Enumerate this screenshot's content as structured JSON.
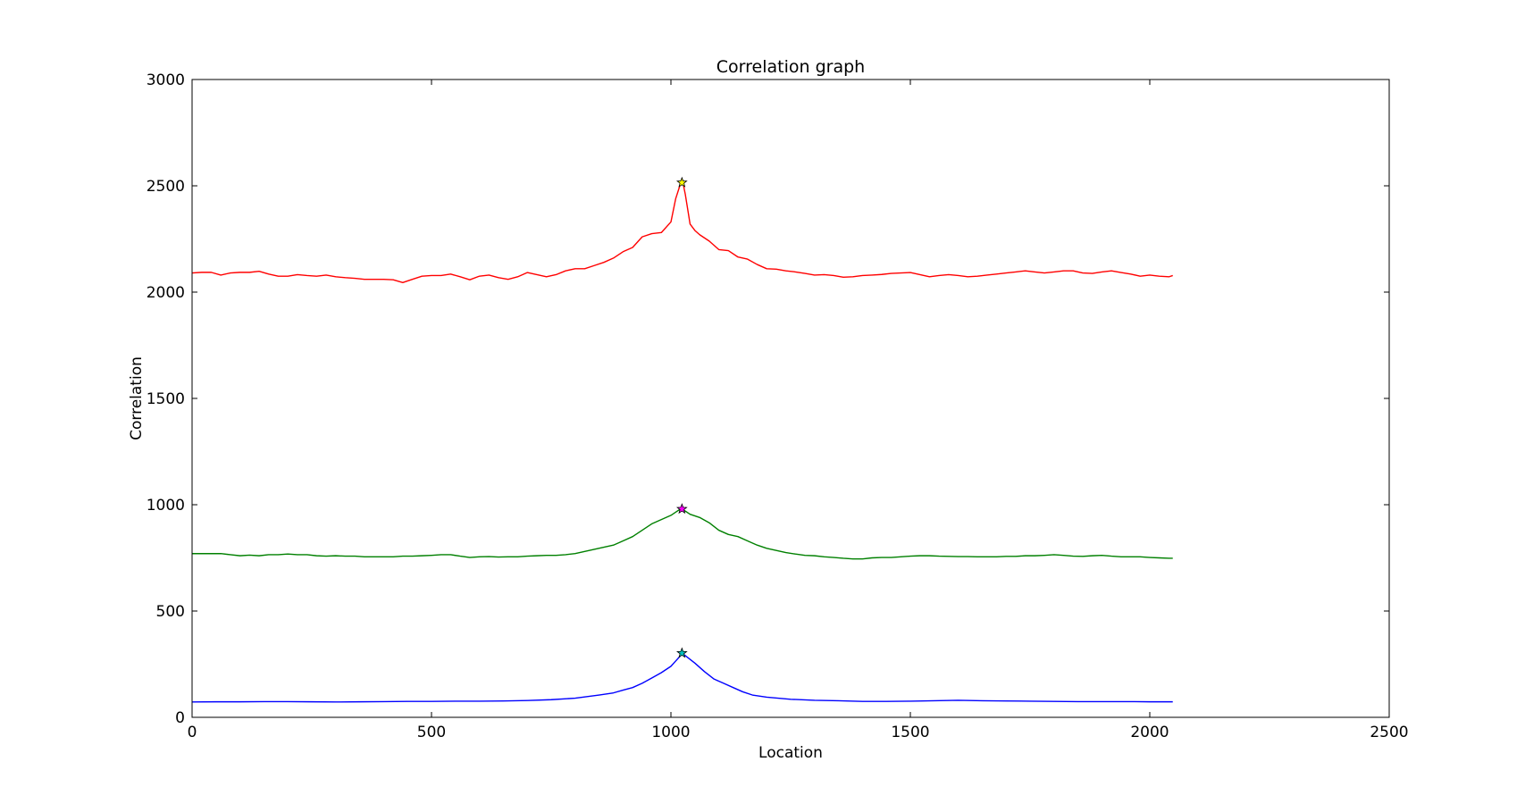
{
  "chart_data": {
    "type": "line",
    "title": "Correlation graph",
    "xlabel": "Location",
    "ylabel": "Correlation",
    "xlim": [
      0,
      2500
    ],
    "ylim": [
      0,
      3000
    ],
    "xticks": [
      "0",
      "500",
      "1000",
      "1500",
      "2000",
      "2500"
    ],
    "yticks": [
      "0",
      "500",
      "1000",
      "1500",
      "2000",
      "2500",
      "3000"
    ],
    "grid": false,
    "legend": "none",
    "series": [
      {
        "color": "#ff0000",
        "x": [
          0,
          20,
          40,
          60,
          80,
          100,
          120,
          140,
          160,
          180,
          200,
          220,
          240,
          260,
          280,
          300,
          320,
          340,
          360,
          380,
          400,
          420,
          440,
          460,
          480,
          500,
          520,
          540,
          560,
          580,
          600,
          620,
          640,
          660,
          680,
          700,
          720,
          740,
          760,
          780,
          800,
          820,
          840,
          860,
          880,
          900,
          920,
          940,
          960,
          980,
          1000,
          1010,
          1020,
          1025,
          1030,
          1040,
          1050,
          1060,
          1080,
          1100,
          1120,
          1140,
          1160,
          1180,
          1200,
          1220,
          1240,
          1260,
          1280,
          1300,
          1320,
          1340,
          1360,
          1380,
          1400,
          1420,
          1440,
          1460,
          1480,
          1500,
          1520,
          1540,
          1560,
          1580,
          1600,
          1620,
          1640,
          1660,
          1680,
          1700,
          1720,
          1740,
          1760,
          1780,
          1800,
          1820,
          1840,
          1860,
          1880,
          1900,
          1920,
          1940,
          1960,
          1980,
          2000,
          2020,
          2040,
          2048
        ],
        "y": [
          2090,
          2093,
          2093,
          2080,
          2090,
          2093,
          2093,
          2098,
          2085,
          2075,
          2075,
          2082,
          2078,
          2075,
          2080,
          2072,
          2068,
          2065,
          2060,
          2060,
          2060,
          2058,
          2045,
          2060,
          2075,
          2078,
          2078,
          2085,
          2072,
          2058,
          2075,
          2080,
          2068,
          2060,
          2072,
          2092,
          2082,
          2072,
          2082,
          2100,
          2110,
          2110,
          2125,
          2140,
          2160,
          2190,
          2210,
          2260,
          2275,
          2280,
          2330,
          2440,
          2510,
          2515,
          2460,
          2320,
          2290,
          2270,
          2240,
          2200,
          2195,
          2165,
          2155,
          2130,
          2110,
          2108,
          2100,
          2095,
          2088,
          2080,
          2082,
          2078,
          2070,
          2072,
          2078,
          2080,
          2083,
          2088,
          2090,
          2092,
          2082,
          2072,
          2078,
          2082,
          2078,
          2072,
          2075,
          2080,
          2085,
          2090,
          2095,
          2100,
          2095,
          2090,
          2095,
          2100,
          2100,
          2090,
          2088,
          2095,
          2100,
          2092,
          2085,
          2075,
          2080,
          2075,
          2072,
          2078
        ]
      },
      {
        "color": "#008000",
        "x": [
          0,
          20,
          40,
          60,
          80,
          100,
          120,
          140,
          160,
          180,
          200,
          220,
          240,
          260,
          280,
          300,
          320,
          340,
          360,
          380,
          400,
          420,
          440,
          460,
          480,
          500,
          520,
          540,
          560,
          580,
          600,
          620,
          640,
          660,
          680,
          700,
          720,
          740,
          760,
          780,
          800,
          820,
          840,
          860,
          880,
          900,
          920,
          940,
          960,
          980,
          1000,
          1010,
          1020,
          1025,
          1030,
          1040,
          1060,
          1080,
          1100,
          1120,
          1140,
          1160,
          1180,
          1200,
          1220,
          1240,
          1260,
          1280,
          1300,
          1320,
          1340,
          1360,
          1380,
          1400,
          1420,
          1440,
          1460,
          1480,
          1500,
          1520,
          1540,
          1560,
          1580,
          1600,
          1620,
          1640,
          1660,
          1680,
          1700,
          1720,
          1740,
          1760,
          1780,
          1800,
          1820,
          1840,
          1860,
          1880,
          1900,
          1920,
          1940,
          1960,
          1980,
          2000,
          2020,
          2040,
          2048
        ],
        "y": [
          770,
          770,
          770,
          770,
          765,
          760,
          763,
          760,
          765,
          765,
          768,
          765,
          765,
          760,
          758,
          760,
          758,
          758,
          755,
          755,
          755,
          755,
          758,
          758,
          760,
          762,
          765,
          765,
          758,
          752,
          755,
          756,
          754,
          755,
          755,
          758,
          760,
          762,
          762,
          765,
          770,
          780,
          790,
          800,
          810,
          830,
          850,
          880,
          910,
          930,
          950,
          965,
          980,
          978,
          970,
          955,
          940,
          915,
          880,
          860,
          850,
          830,
          810,
          795,
          785,
          775,
          768,
          762,
          760,
          755,
          752,
          748,
          745,
          745,
          750,
          752,
          752,
          755,
          758,
          760,
          760,
          758,
          757,
          756,
          756,
          755,
          755,
          755,
          757,
          757,
          760,
          760,
          762,
          765,
          762,
          758,
          757,
          760,
          762,
          758,
          755,
          755,
          755,
          752,
          750,
          748,
          748
        ]
      },
      {
        "color": "#0000ff",
        "x": [
          0,
          50,
          100,
          150,
          200,
          250,
          300,
          350,
          400,
          450,
          500,
          550,
          600,
          650,
          700,
          750,
          800,
          850,
          880,
          900,
          920,
          940,
          960,
          980,
          1000,
          1010,
          1020,
          1025,
          1030,
          1050,
          1070,
          1090,
          1110,
          1130,
          1150,
          1170,
          1200,
          1250,
          1300,
          1350,
          1400,
          1450,
          1500,
          1550,
          1600,
          1650,
          1700,
          1750,
          1800,
          1850,
          1900,
          1950,
          2000,
          2048
        ],
        "y": [
          72,
          73,
          73,
          74,
          74,
          73,
          72,
          73,
          74,
          75,
          75,
          76,
          76,
          77,
          79,
          83,
          90,
          105,
          115,
          128,
          140,
          160,
          185,
          210,
          240,
          265,
          290,
          300,
          290,
          255,
          215,
          180,
          160,
          140,
          120,
          105,
          95,
          85,
          80,
          78,
          75,
          75,
          76,
          78,
          80,
          78,
          77,
          76,
          75,
          74,
          74,
          74,
          73,
          73
        ]
      }
    ],
    "markers": [
      {
        "x": 1023,
        "y": 2515,
        "symbol": "star",
        "color": "#ffff00"
      },
      {
        "x": 1023,
        "y": 980,
        "symbol": "star",
        "color": "#ff00ff"
      },
      {
        "x": 1023,
        "y": 302,
        "symbol": "star",
        "color": "#00bfbf"
      }
    ]
  }
}
